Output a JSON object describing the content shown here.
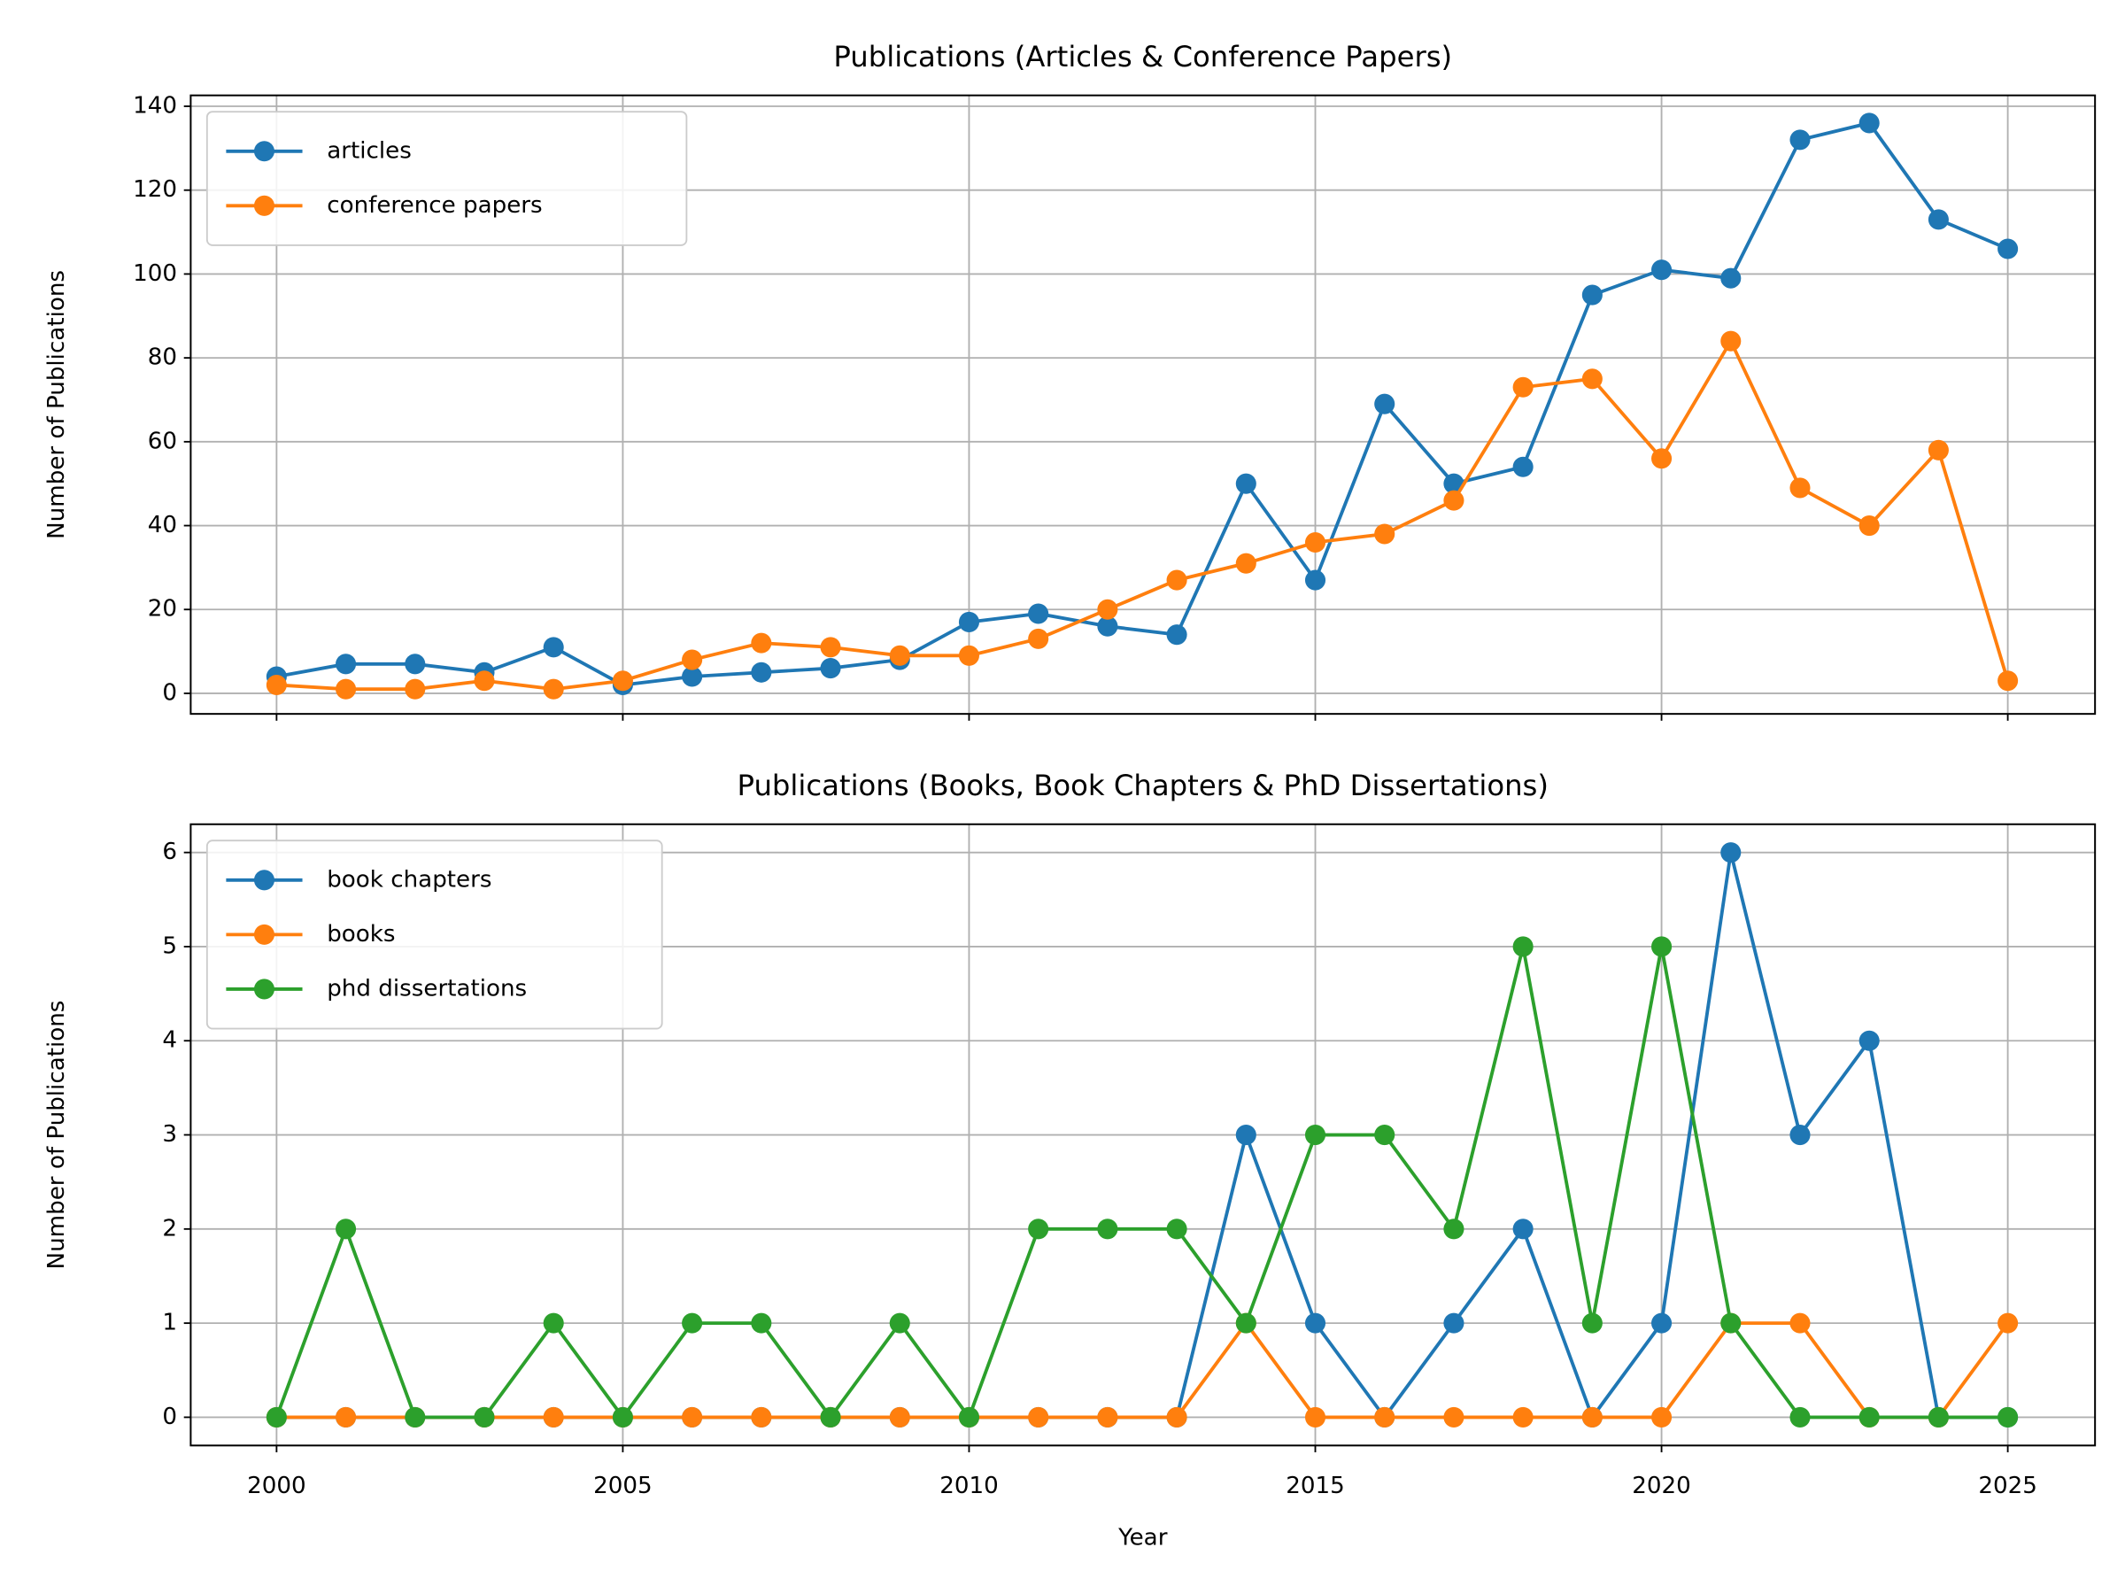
{
  "chart_data": [
    {
      "type": "line",
      "title": "Publications (Articles & Conference Papers)",
      "ylabel": "Number of Publications",
      "x": [
        2000,
        2001,
        2002,
        2003,
        2004,
        2005,
        2006,
        2007,
        2008,
        2009,
        2010,
        2011,
        2012,
        2013,
        2014,
        2015,
        2016,
        2017,
        2018,
        2019,
        2020,
        2021,
        2022,
        2023,
        2024,
        2025
      ],
      "series": [
        {
          "name": "articles",
          "color": "#1f77b4",
          "values": [
            4,
            7,
            7,
            5,
            11,
            2,
            4,
            5,
            6,
            8,
            17,
            19,
            16,
            14,
            50,
            27,
            69,
            50,
            54,
            95,
            101,
            99,
            132,
            136,
            113,
            106
          ]
        },
        {
          "name": "conference papers",
          "color": "#ff7f0e",
          "values": [
            2,
            1,
            1,
            3,
            1,
            3,
            8,
            12,
            11,
            9,
            9,
            13,
            20,
            27,
            31,
            36,
            38,
            46,
            73,
            75,
            56,
            84,
            49,
            40,
            58,
            3
          ]
        }
      ],
      "xlim": [
        1998.76,
        2026.26
      ],
      "xticks": [
        2000,
        2005,
        2010,
        2015,
        2020,
        2025
      ],
      "show_xtick_labels": false,
      "ylim": [
        -4.9,
        142.6
      ],
      "yticks": [
        0,
        20,
        40,
        60,
        80,
        100,
        120,
        140
      ],
      "grid": true,
      "legend": "upper left"
    },
    {
      "type": "line",
      "title": "Publications (Books, Book Chapters & PhD Dissertations)",
      "ylabel": "Number of Publications",
      "xlabel": "Year",
      "x": [
        2000,
        2001,
        2002,
        2003,
        2004,
        2005,
        2006,
        2007,
        2008,
        2009,
        2010,
        2011,
        2012,
        2013,
        2014,
        2015,
        2016,
        2017,
        2018,
        2019,
        2020,
        2021,
        2022,
        2023,
        2024,
        2025
      ],
      "series": [
        {
          "name": "book chapters",
          "color": "#1f77b4",
          "values": [
            0,
            0,
            0,
            0,
            0,
            0,
            0,
            0,
            0,
            0,
            0,
            0,
            0,
            0,
            3,
            1,
            0,
            1,
            2,
            0,
            1,
            6,
            3,
            4,
            0,
            0
          ]
        },
        {
          "name": "books",
          "color": "#ff7f0e",
          "values": [
            0,
            0,
            0,
            0,
            0,
            0,
            0,
            0,
            0,
            0,
            0,
            0,
            0,
            0,
            1,
            0,
            0,
            0,
            0,
            0,
            0,
            1,
            1,
            0,
            0,
            1
          ]
        },
        {
          "name": "phd dissertations",
          "color": "#2ca02c",
          "values": [
            0,
            2,
            0,
            0,
            1,
            0,
            1,
            1,
            0,
            1,
            0,
            2,
            2,
            2,
            1,
            3,
            3,
            2,
            5,
            1,
            5,
            1,
            0,
            0,
            0,
            0
          ]
        }
      ],
      "xlim": [
        1998.76,
        2026.26
      ],
      "xticks": [
        2000,
        2005,
        2010,
        2015,
        2020,
        2025
      ],
      "show_xtick_labels": true,
      "ylim": [
        -0.3,
        6.3
      ],
      "yticks": [
        0,
        1,
        2,
        3,
        4,
        5,
        6
      ],
      "grid": true,
      "legend": "upper left"
    }
  ]
}
